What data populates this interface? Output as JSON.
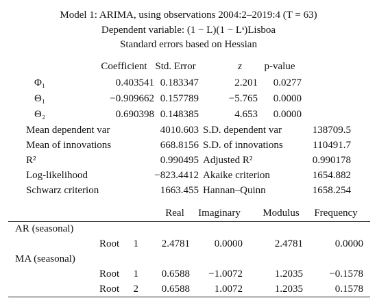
{
  "header": {
    "title": "Model 1: ARIMA, using observations 2004:2–2019:4 (T = 63)",
    "dependent": "Dependent variable: (1 − L)(1 − Lˢ)Lisboa",
    "errors": "Standard errors based on Hessian"
  },
  "coefficients": {
    "columns": [
      "Coefficient",
      "Std. Error",
      "z",
      "p-value"
    ],
    "rows": [
      [
        "Φ₁",
        "0.403541",
        "0.183347",
        "2.201",
        "0.0277"
      ],
      [
        "Θ₁",
        "−0.909662",
        "0.157789",
        "−5.765",
        "0.0000"
      ],
      [
        "Θ₂",
        "0.690398",
        "0.148385",
        "4.653",
        "0.0000"
      ]
    ]
  },
  "stats": {
    "rows": [
      [
        "Mean dependent var",
        "4010.603",
        "S.D. dependent var",
        "138709.5"
      ],
      [
        "Mean of innovations",
        "668.8156",
        "S.D. of innovations",
        "110491.7"
      ],
      [
        "R²",
        "0.990495",
        "Adjusted R²",
        "0.990178"
      ],
      [
        "Log-likelihood",
        "−823.4412",
        "Akaike criterion",
        "1654.882"
      ],
      [
        "Schwarz criterion",
        "1663.455",
        "Hannan–Quinn",
        "1658.254"
      ]
    ]
  },
  "roots": {
    "columns": [
      "Real",
      "Imaginary",
      "Modulus",
      "Frequency"
    ],
    "groups": [
      {
        "label": "AR (seasonal)",
        "rows": [
          [
            "Root",
            "1",
            "2.4781",
            "0.0000",
            "2.4781",
            "0.0000"
          ]
        ]
      },
      {
        "label": "MA (seasonal)",
        "rows": [
          [
            "Root",
            "1",
            "0.6588",
            "−1.0072",
            "1.2035",
            "−0.1578"
          ],
          [
            "Root",
            "2",
            "0.6588",
            "1.0072",
            "1.2035",
            "0.1578"
          ]
        ]
      }
    ]
  }
}
